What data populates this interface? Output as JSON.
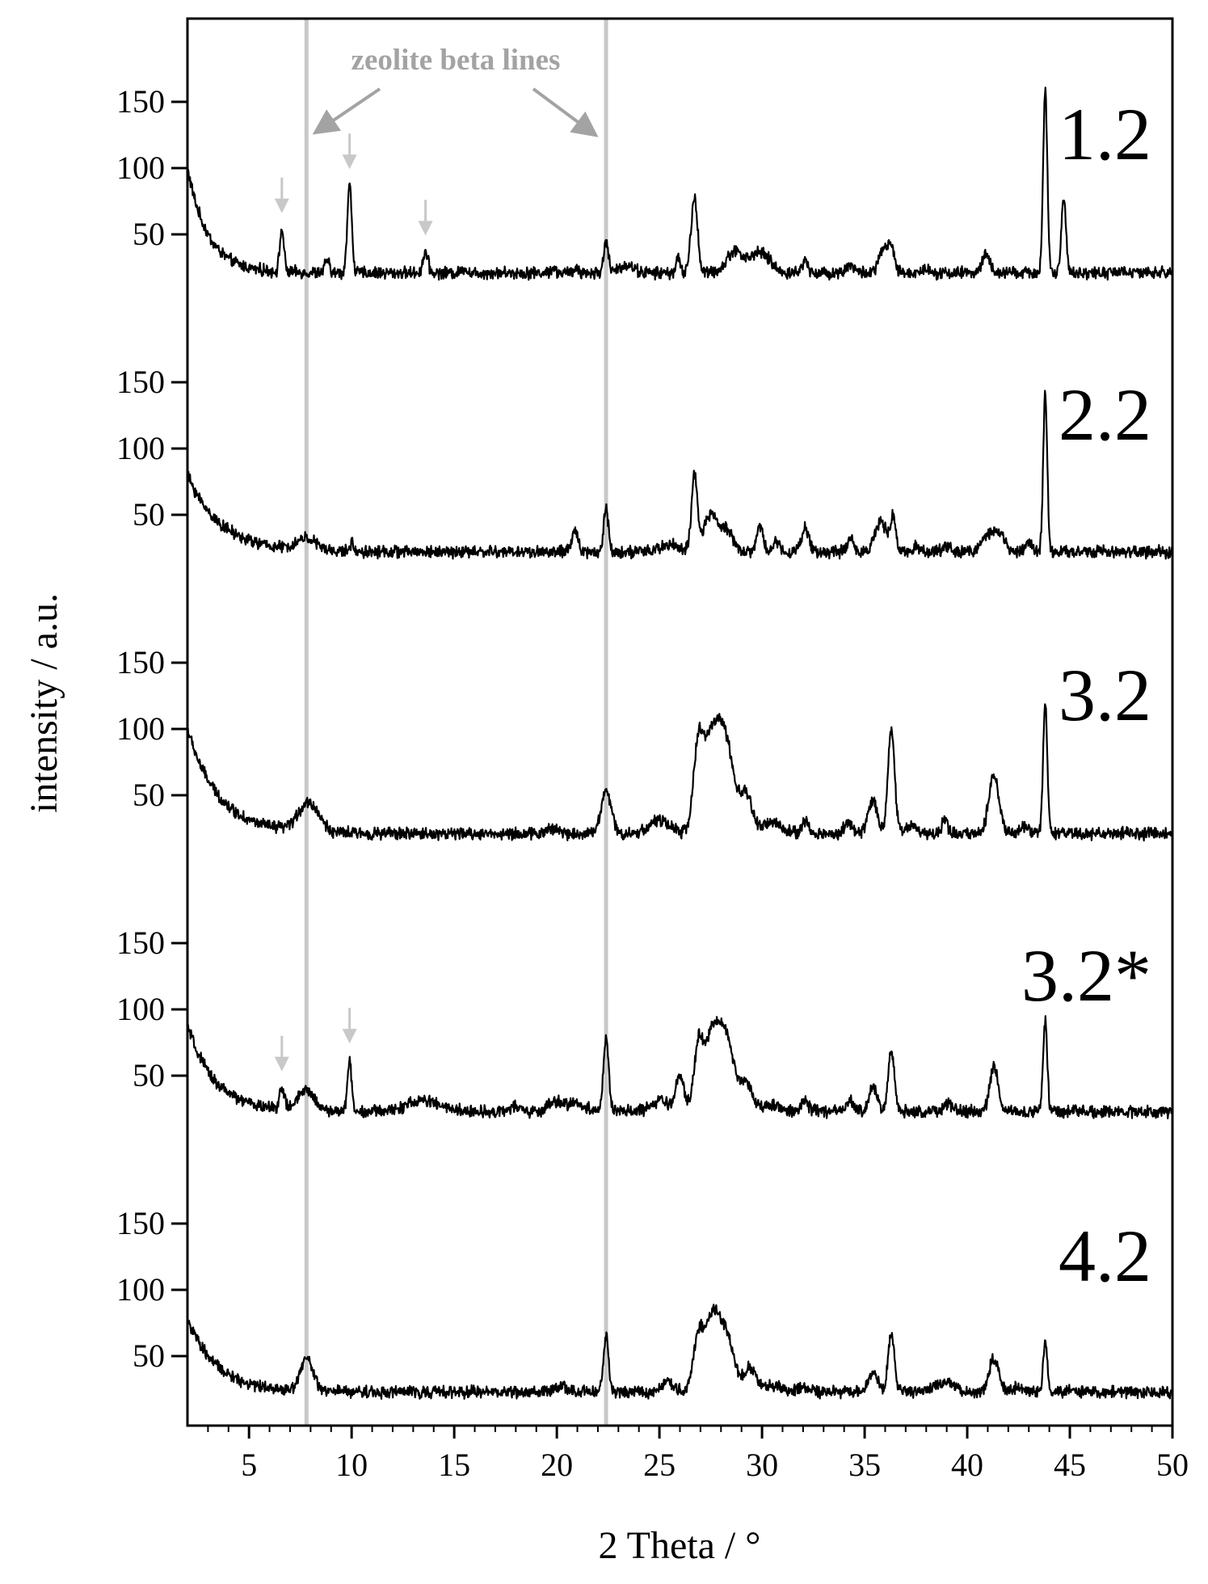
{
  "chart_data": {
    "type": "line",
    "xlabel": "2 Theta / °",
    "ylabel": "intensity / a.u.",
    "xlim": [
      2,
      50
    ],
    "x_ticks": [
      5,
      10,
      15,
      20,
      25,
      30,
      35,
      40,
      45,
      50
    ],
    "y_tick_labels": [
      "150",
      "100",
      "50"
    ],
    "panel_ylim": [
      0,
      175
    ],
    "grid": false,
    "legend": "none",
    "reference_lines": [
      {
        "x": 7.8,
        "color": "#c8c8c8"
      },
      {
        "x": 22.4,
        "color": "#c8c8c8"
      }
    ],
    "annotation": {
      "text": "zeolite beta lines",
      "color": "#a3a3a3"
    },
    "series": [
      {
        "name": "1.2",
        "baseline": 21,
        "start": {
          "value": 100,
          "decay": 1.0
        },
        "peaks": [
          {
            "x": 6.6,
            "h": 32,
            "w": 0.1
          },
          {
            "x": 8.8,
            "h": 10,
            "w": 0.1
          },
          {
            "x": 9.9,
            "h": 66,
            "w": 0.11
          },
          {
            "x": 13.6,
            "h": 16,
            "w": 0.12
          },
          {
            "x": 15.5,
            "h": 4,
            "w": 0.1
          },
          {
            "x": 19.8,
            "h": 4,
            "w": 0.1
          },
          {
            "x": 21.0,
            "h": 4,
            "w": 0.1
          },
          {
            "x": 22.4,
            "h": 24,
            "w": 0.11
          },
          {
            "x": 23.4,
            "h": 6,
            "w": 0.35
          },
          {
            "x": 25.9,
            "h": 11,
            "w": 0.1
          },
          {
            "x": 26.7,
            "h": 56,
            "w": 0.16
          },
          {
            "x": 28.7,
            "h": 17,
            "w": 0.4
          },
          {
            "x": 29.8,
            "h": 15,
            "w": 0.35
          },
          {
            "x": 30.4,
            "h": 6,
            "w": 0.25
          },
          {
            "x": 32.1,
            "h": 9,
            "w": 0.15
          },
          {
            "x": 34.3,
            "h": 6,
            "w": 0.2
          },
          {
            "x": 35.9,
            "h": 18,
            "w": 0.2
          },
          {
            "x": 36.3,
            "h": 19,
            "w": 0.15
          },
          {
            "x": 38.0,
            "h": 3,
            "w": 0.2
          },
          {
            "x": 40.9,
            "h": 14,
            "w": 0.18
          },
          {
            "x": 43.8,
            "h": 138,
            "w": 0.1
          },
          {
            "x": 44.7,
            "h": 55,
            "w": 0.11
          },
          {
            "x": 47.5,
            "h": 3,
            "w": 0.1
          }
        ]
      },
      {
        "name": "2.2",
        "baseline": 22,
        "start": {
          "value": 80,
          "decay": 1.6
        },
        "peaks": [
          {
            "x": 7.8,
            "h": 9,
            "w": 0.45
          },
          {
            "x": 10.0,
            "h": 6,
            "w": 0.1
          },
          {
            "x": 20.9,
            "h": 16,
            "w": 0.15
          },
          {
            "x": 22.4,
            "h": 34,
            "w": 0.11
          },
          {
            "x": 25.5,
            "h": 6,
            "w": 0.4
          },
          {
            "x": 26.7,
            "h": 56,
            "w": 0.14
          },
          {
            "x": 27.5,
            "h": 28,
            "w": 0.35
          },
          {
            "x": 28.3,
            "h": 16,
            "w": 0.3
          },
          {
            "x": 29.9,
            "h": 20,
            "w": 0.15
          },
          {
            "x": 30.7,
            "h": 7,
            "w": 0.2
          },
          {
            "x": 32.1,
            "h": 18,
            "w": 0.18
          },
          {
            "x": 34.3,
            "h": 11,
            "w": 0.15
          },
          {
            "x": 35.8,
            "h": 22,
            "w": 0.3
          },
          {
            "x": 36.4,
            "h": 24,
            "w": 0.12
          },
          {
            "x": 37.5,
            "h": 4,
            "w": 0.2
          },
          {
            "x": 39.0,
            "h": 5,
            "w": 0.2
          },
          {
            "x": 41.0,
            "h": 13,
            "w": 0.3
          },
          {
            "x": 41.6,
            "h": 13,
            "w": 0.25
          },
          {
            "x": 43.0,
            "h": 7,
            "w": 0.2
          },
          {
            "x": 43.8,
            "h": 118,
            "w": 0.1
          }
        ]
      },
      {
        "name": "3.2",
        "baseline": 21,
        "start": {
          "value": 100,
          "decay": 1.5
        },
        "peaks": [
          {
            "x": 7.9,
            "h": 22,
            "w": 0.5
          },
          {
            "x": 19.8,
            "h": 4,
            "w": 0.3
          },
          {
            "x": 22.4,
            "h": 32,
            "w": 0.25
          },
          {
            "x": 25.0,
            "h": 10,
            "w": 0.5
          },
          {
            "x": 26.9,
            "h": 60,
            "w": 0.25
          },
          {
            "x": 27.6,
            "h": 75,
            "w": 0.4
          },
          {
            "x": 28.3,
            "h": 56,
            "w": 0.35
          },
          {
            "x": 29.2,
            "h": 30,
            "w": 0.3
          },
          {
            "x": 30.5,
            "h": 8,
            "w": 0.5
          },
          {
            "x": 32.1,
            "h": 10,
            "w": 0.15
          },
          {
            "x": 34.2,
            "h": 8,
            "w": 0.2
          },
          {
            "x": 35.4,
            "h": 26,
            "w": 0.22
          },
          {
            "x": 36.3,
            "h": 80,
            "w": 0.16
          },
          {
            "x": 37.3,
            "h": 6,
            "w": 0.3
          },
          {
            "x": 38.9,
            "h": 10,
            "w": 0.15
          },
          {
            "x": 41.3,
            "h": 44,
            "w": 0.25
          },
          {
            "x": 42.8,
            "h": 6,
            "w": 0.2
          },
          {
            "x": 43.8,
            "h": 98,
            "w": 0.1
          }
        ]
      },
      {
        "name": "3.2*",
        "baseline": 23,
        "start": {
          "value": 88,
          "decay": 1.3
        },
        "peaks": [
          {
            "x": 6.6,
            "h": 16,
            "w": 0.12
          },
          {
            "x": 7.8,
            "h": 15,
            "w": 0.4
          },
          {
            "x": 9.9,
            "h": 39,
            "w": 0.1
          },
          {
            "x": 13.5,
            "h": 8,
            "w": 0.8
          },
          {
            "x": 17.9,
            "h": 4,
            "w": 0.2
          },
          {
            "x": 19.9,
            "h": 7,
            "w": 0.3
          },
          {
            "x": 20.9,
            "h": 6,
            "w": 0.5
          },
          {
            "x": 22.4,
            "h": 54,
            "w": 0.13
          },
          {
            "x": 25.0,
            "h": 8,
            "w": 0.4
          },
          {
            "x": 26.0,
            "h": 28,
            "w": 0.2
          },
          {
            "x": 26.9,
            "h": 48,
            "w": 0.22
          },
          {
            "x": 27.6,
            "h": 60,
            "w": 0.35
          },
          {
            "x": 28.3,
            "h": 50,
            "w": 0.35
          },
          {
            "x": 29.2,
            "h": 22,
            "w": 0.3
          },
          {
            "x": 30.5,
            "h": 6,
            "w": 0.4
          },
          {
            "x": 32.1,
            "h": 9,
            "w": 0.15
          },
          {
            "x": 34.3,
            "h": 7,
            "w": 0.2
          },
          {
            "x": 35.4,
            "h": 18,
            "w": 0.2
          },
          {
            "x": 36.3,
            "h": 46,
            "w": 0.15
          },
          {
            "x": 39.1,
            "h": 6,
            "w": 0.2
          },
          {
            "x": 41.3,
            "h": 34,
            "w": 0.2
          },
          {
            "x": 43.8,
            "h": 68,
            "w": 0.1
          }
        ]
      },
      {
        "name": "4.2",
        "baseline": 23,
        "start": {
          "value": 78,
          "decay": 1.4
        },
        "peaks": [
          {
            "x": 7.8,
            "h": 25,
            "w": 0.3
          },
          {
            "x": 20.2,
            "h": 4,
            "w": 0.3
          },
          {
            "x": 22.4,
            "h": 44,
            "w": 0.12
          },
          {
            "x": 25.4,
            "h": 8,
            "w": 0.3
          },
          {
            "x": 26.9,
            "h": 40,
            "w": 0.25
          },
          {
            "x": 27.6,
            "h": 56,
            "w": 0.35
          },
          {
            "x": 28.3,
            "h": 38,
            "w": 0.35
          },
          {
            "x": 29.4,
            "h": 18,
            "w": 0.3
          },
          {
            "x": 30.5,
            "h": 5,
            "w": 0.4
          },
          {
            "x": 32.1,
            "h": 4,
            "w": 0.3
          },
          {
            "x": 35.4,
            "h": 16,
            "w": 0.22
          },
          {
            "x": 36.3,
            "h": 44,
            "w": 0.16
          },
          {
            "x": 38.6,
            "h": 6,
            "w": 0.3
          },
          {
            "x": 39.2,
            "h": 5,
            "w": 0.3
          },
          {
            "x": 41.3,
            "h": 26,
            "w": 0.22
          },
          {
            "x": 42.5,
            "h": 4,
            "w": 0.2
          },
          {
            "x": 43.8,
            "h": 40,
            "w": 0.1
          }
        ]
      }
    ],
    "marker_arrows": [
      {
        "series": "1.2",
        "x": [
          6.6,
          9.9,
          13.6
        ]
      },
      {
        "series": "3.2*",
        "x": [
          6.6,
          9.9
        ]
      }
    ]
  }
}
